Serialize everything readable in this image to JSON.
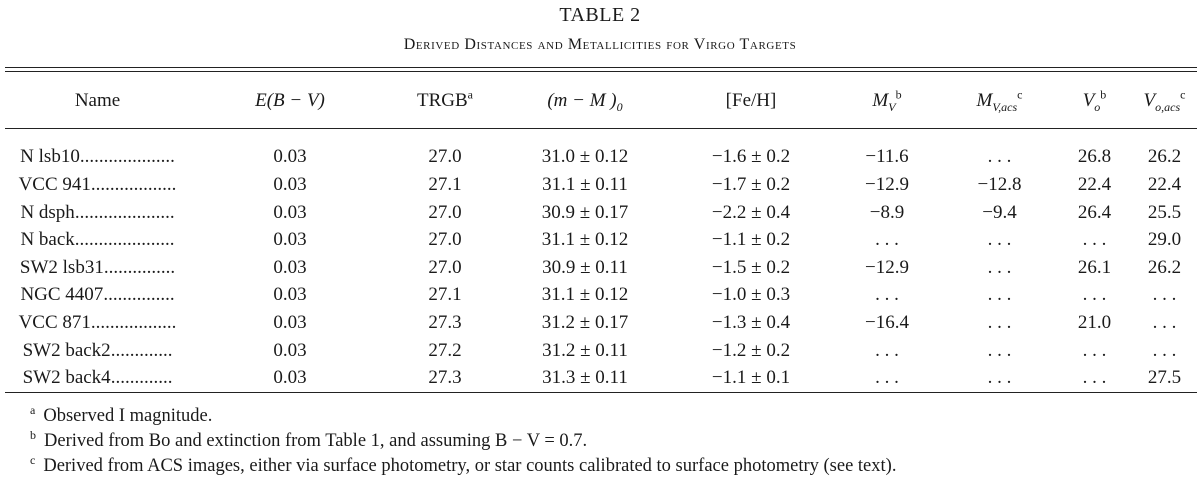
{
  "table": {
    "number": "TABLE 2",
    "caption": "Derived Distances and Metallicities for Virgo Targets",
    "columns": [
      {
        "main": "Name",
        "italic": false,
        "sup": "",
        "sub": ""
      },
      {
        "main": "E(B − V)",
        "italic": true,
        "sup": "",
        "sub": ""
      },
      {
        "main": "TRGB",
        "italic": false,
        "sup": "a",
        "sub": ""
      },
      {
        "main": "(m − M )",
        "italic": true,
        "sup": "",
        "sub": "0"
      },
      {
        "main": "[Fe/H]",
        "italic": false,
        "sup": "",
        "sub": ""
      },
      {
        "main": "M",
        "italic": true,
        "sup": "b",
        "sub": "V"
      },
      {
        "main": "M",
        "italic": true,
        "sup": "c",
        "sub": "V,acs"
      },
      {
        "main": "V",
        "italic": true,
        "sup": "b",
        "sub": "o"
      },
      {
        "main": "V",
        "italic": true,
        "sup": "c",
        "sub": "o,acs"
      }
    ],
    "rows": [
      {
        "name": "N lsb10",
        "dots": "....................",
        "ebv": "0.03",
        "trgb": "27.0",
        "dm": "31.0 ± 0.12",
        "feh": "−1.6 ± 0.2",
        "mv": "−11.6",
        "mvacs": ". . .",
        "vo": "26.8",
        "voacs": "26.2"
      },
      {
        "name": "VCC 941",
        "dots": "..................",
        "ebv": "0.03",
        "trgb": "27.1",
        "dm": "31.1 ± 0.11",
        "feh": "−1.7 ± 0.2",
        "mv": "−12.9",
        "mvacs": "−12.8",
        "vo": "22.4",
        "voacs": "22.4"
      },
      {
        "name": "N dsph",
        "dots": ".....................",
        "ebv": "0.03",
        "trgb": "27.0",
        "dm": "30.9 ± 0.17",
        "feh": "−2.2 ± 0.4",
        "mv": "−8.9",
        "mvacs": "−9.4",
        "vo": "26.4",
        "voacs": "25.5"
      },
      {
        "name": "N back",
        "dots": ".....................",
        "ebv": "0.03",
        "trgb": "27.0",
        "dm": "31.1 ± 0.12",
        "feh": "−1.1 ± 0.2",
        "mv": ". . .",
        "mvacs": ". . .",
        "vo": ". . .",
        "voacs": "29.0"
      },
      {
        "name": "SW2 lsb31",
        "dots": "...............",
        "ebv": "0.03",
        "trgb": "27.0",
        "dm": "30.9 ± 0.11",
        "feh": "−1.5 ± 0.2",
        "mv": "−12.9",
        "mvacs": ". . .",
        "vo": "26.1",
        "voacs": "26.2"
      },
      {
        "name": "NGC 4407",
        "dots": "...............",
        "ebv": "0.03",
        "trgb": "27.1",
        "dm": "31.1 ± 0.12",
        "feh": "−1.0 ± 0.3",
        "mv": ". . .",
        "mvacs": ". . .",
        "vo": ". . .",
        "voacs": ". . ."
      },
      {
        "name": "VCC 871",
        "dots": "..................",
        "ebv": "0.03",
        "trgb": "27.3",
        "dm": "31.2 ± 0.17",
        "feh": "−1.3 ± 0.4",
        "mv": "−16.4",
        "mvacs": ". . .",
        "vo": "21.0",
        "voacs": ". . ."
      },
      {
        "name": "SW2 back2",
        "dots": ".............",
        "ebv": "0.03",
        "trgb": "27.2",
        "dm": "31.2 ± 0.11",
        "feh": "−1.2 ± 0.2",
        "mv": ". . .",
        "mvacs": ". . .",
        "vo": ". . .",
        "voacs": ". . ."
      },
      {
        "name": "SW2 back4",
        "dots": ".............",
        "ebv": "0.03",
        "trgb": "27.3",
        "dm": "31.3 ± 0.11",
        "feh": "−1.1 ± 0.1",
        "mv": ". . .",
        "mvacs": ". . .",
        "vo": ". . .",
        "voacs": "27.5"
      }
    ],
    "footnotes": [
      {
        "mark": "a",
        "text": "Observed I magnitude."
      },
      {
        "mark": "b",
        "text": "Derived from Bo and extinction from Table 1, and assuming B − V = 0.7."
      },
      {
        "mark": "c",
        "text": "Derived from ACS images, either via surface photometry, or star counts calibrated to surface photometry (see text)."
      }
    ]
  }
}
